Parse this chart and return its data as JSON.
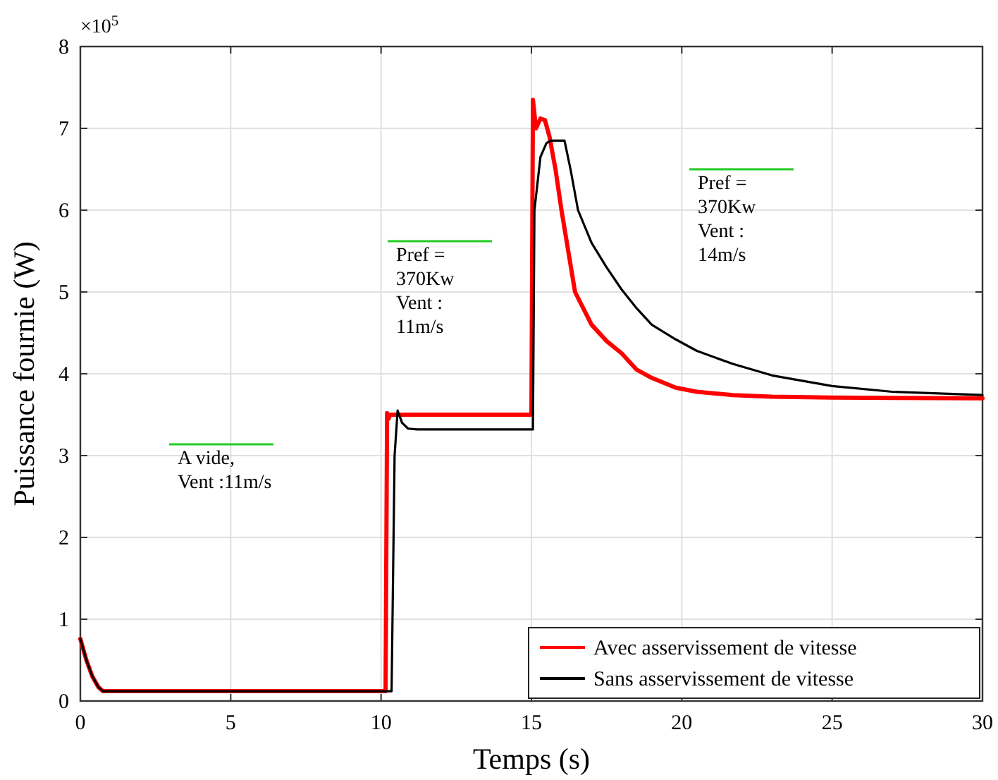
{
  "chart_data": {
    "type": "line",
    "xlabel": "Temps (s)",
    "ylabel": "Puissance fournie (W)",
    "xlim": [
      0,
      30
    ],
    "xticks": [
      0,
      5,
      10,
      15,
      20,
      25,
      30
    ],
    "ylim": [
      0,
      8
    ],
    "yticks": [
      0,
      1,
      2,
      3,
      4,
      5,
      6,
      7,
      8
    ],
    "grid": true,
    "legend": "bottom right",
    "line_style": "solid",
    "marker": "none",
    "series": [
      {
        "name": "Avec asservissement de vitesse",
        "color": "#ff0000",
        "x": [
          0,
          0.2,
          0.4,
          0.6,
          0.75,
          10.15,
          10.2,
          10.25,
          10.3,
          15.0,
          15.05,
          15.15,
          15.3,
          15.45,
          15.6,
          15.8,
          16.0,
          16.45,
          17.0,
          17.5,
          18.0,
          18.5,
          19.0,
          19.8,
          20.5,
          21.7,
          23,
          25,
          30
        ],
        "values": [
          0.76,
          0.5,
          0.3,
          0.17,
          0.12,
          0.12,
          3.52,
          3.45,
          3.5,
          3.5,
          7.35,
          7.0,
          7.12,
          7.1,
          6.9,
          6.5,
          6.0,
          5.0,
          4.6,
          4.4,
          4.25,
          4.05,
          3.95,
          3.83,
          3.78,
          3.74,
          3.72,
          3.71,
          3.7
        ]
      },
      {
        "name": "Sans asservissement de vitesse",
        "color": "#000000",
        "x": [
          0,
          0.2,
          0.4,
          0.6,
          0.75,
          10.35,
          10.45,
          10.55,
          10.7,
          10.9,
          11.2,
          15.05,
          15.1,
          15.3,
          15.5,
          15.65,
          16.1,
          16.3,
          16.55,
          17,
          17.5,
          18,
          18.5,
          19,
          19.8,
          20.5,
          21.7,
          23,
          25,
          27,
          30
        ],
        "values": [
          0.76,
          0.5,
          0.3,
          0.17,
          0.12,
          0.12,
          3.0,
          3.55,
          3.4,
          3.33,
          3.32,
          3.32,
          6.0,
          6.65,
          6.82,
          6.85,
          6.85,
          6.5,
          6.0,
          5.6,
          5.3,
          5.03,
          4.8,
          4.6,
          4.42,
          4.28,
          4.12,
          3.98,
          3.85,
          3.78,
          3.74
        ]
      }
    ],
    "annotations": [
      "×10$^{5}$",
      "A vide,\nVent :11m/s",
      "Pref =\n370Kw\nVent :\n11m/s",
      "Pref =\n370Kw\nVent :\n14m/s"
    ]
  }
}
